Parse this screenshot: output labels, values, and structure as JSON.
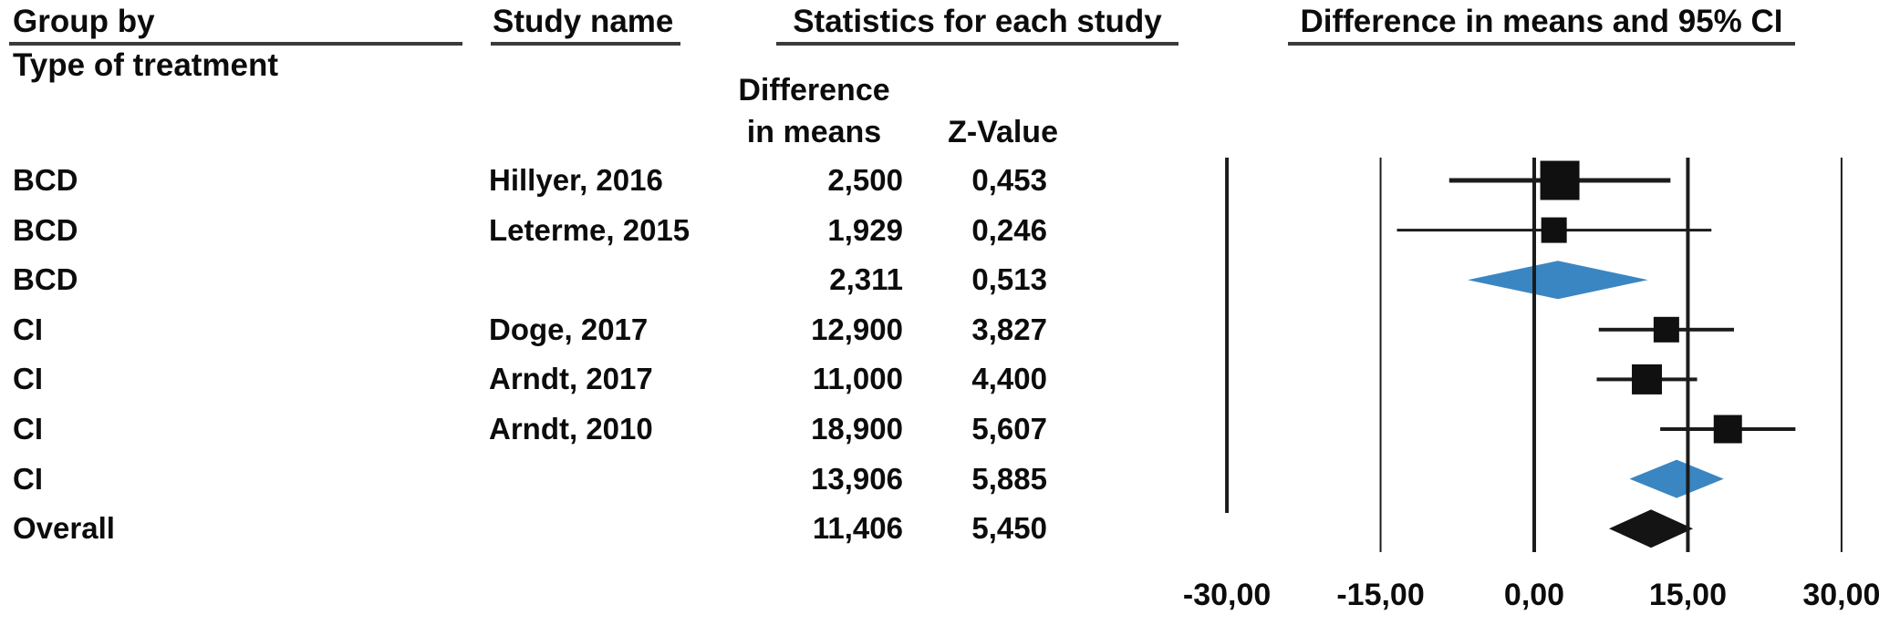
{
  "header": {
    "group_by_label": "Group by",
    "group_by_value": "Type of treatment",
    "study_col_label": "Study name",
    "stats_col_label": "Statistics for each study",
    "diff_subcol_line1": "Difference",
    "diff_subcol_line2": "in means",
    "z_subcol_label": "Z-Value",
    "plot_col_label": "Difference in means and 95% CI"
  },
  "axis": {
    "tick_labels": [
      "-30,00",
      "-15,00",
      "0,00",
      "15,00",
      "30,00"
    ],
    "tick_values": [
      -30,
      -15,
      0,
      15,
      30
    ]
  },
  "colors": {
    "subgroup_diamond": "#3a86c2",
    "overall_diamond": "#141414",
    "marker": "#101010",
    "line": "#1c1c1c"
  },
  "rows": [
    {
      "group": "BCD",
      "study": "Hillyer, 2016",
      "diff": "2,500",
      "z": "0,453",
      "marker": "square",
      "mean": 2.5,
      "ci_low": -8.3,
      "ci_high": 13.3,
      "size": 43,
      "lw": 5
    },
    {
      "group": "BCD",
      "study": "Leterme, 2015",
      "diff": "1,929",
      "z": "0,246",
      "marker": "square",
      "mean": 1.929,
      "ci_low": -13.4,
      "ci_high": 17.3,
      "size": 28,
      "lw": 3
    },
    {
      "group": "BCD",
      "study": "",
      "diff": "2,311",
      "z": "0,513",
      "marker": "diamond",
      "mean": 2.311,
      "ci_low": -6.5,
      "ci_high": 11.1,
      "color": "#3a86c2"
    },
    {
      "group": "CI",
      "study": "Doge, 2017",
      "diff": "12,900",
      "z": "3,827",
      "marker": "square",
      "mean": 12.9,
      "ci_low": 6.3,
      "ci_high": 19.5,
      "size": 28,
      "lw": 4
    },
    {
      "group": "CI",
      "study": "Arndt, 2017",
      "diff": "11,000",
      "z": "4,400",
      "marker": "square",
      "mean": 11.0,
      "ci_low": 6.1,
      "ci_high": 15.9,
      "size": 33,
      "lw": 4
    },
    {
      "group": "CI",
      "study": "Arndt, 2010",
      "diff": "18,900",
      "z": "5,607",
      "marker": "square",
      "mean": 18.9,
      "ci_low": 12.3,
      "ci_high": 25.5,
      "size": 31,
      "lw": 4
    },
    {
      "group": "CI",
      "study": "",
      "diff": "13,906",
      "z": "5,885",
      "marker": "diamond",
      "mean": 13.906,
      "ci_low": 9.3,
      "ci_high": 18.5,
      "color": "#3a86c2"
    },
    {
      "group": "Overall",
      "study": "",
      "diff": "11,406",
      "z": "5,450",
      "marker": "diamond",
      "mean": 11.406,
      "ci_low": 7.3,
      "ci_high": 15.5,
      "color": "#141414"
    }
  ],
  "chart_data": {
    "type": "scatter",
    "subtype": "forest-plot",
    "title": "Difference in means and 95% CI",
    "grouping_label": "Group by Type of treatment",
    "x_axis": {
      "min": -30,
      "max": 30,
      "tick_values": [
        -30,
        -15,
        0,
        15,
        30
      ],
      "tick_labels": [
        "-30,00",
        "-15,00",
        "0,00",
        "15,00",
        "30,00"
      ]
    },
    "reference_lines": [
      -30,
      -15,
      0,
      15,
      30
    ],
    "legend_position": "none",
    "grid": false,
    "points": [
      {
        "group": "BCD",
        "study": "Hillyer, 2016",
        "difference_in_means": 2.5,
        "z_value": 0.453,
        "ci95": [
          -8.3,
          13.3
        ],
        "marker": "square",
        "summary": false
      },
      {
        "group": "BCD",
        "study": "Leterme, 2015",
        "difference_in_means": 1.929,
        "z_value": 0.246,
        "ci95": [
          -13.4,
          17.3
        ],
        "marker": "square",
        "summary": false
      },
      {
        "group": "BCD",
        "study": null,
        "difference_in_means": 2.311,
        "z_value": 0.513,
        "ci95": [
          -6.5,
          11.1
        ],
        "marker": "diamond",
        "summary": true
      },
      {
        "group": "CI",
        "study": "Doge, 2017",
        "difference_in_means": 12.9,
        "z_value": 3.827,
        "ci95": [
          6.3,
          19.5
        ],
        "marker": "square",
        "summary": false
      },
      {
        "group": "CI",
        "study": "Arndt, 2017",
        "difference_in_means": 11.0,
        "z_value": 4.4,
        "ci95": [
          6.1,
          15.9
        ],
        "marker": "square",
        "summary": false
      },
      {
        "group": "CI",
        "study": "Arndt, 2010",
        "difference_in_means": 18.9,
        "z_value": 5.607,
        "ci95": [
          12.3,
          25.5
        ],
        "marker": "square",
        "summary": false
      },
      {
        "group": "CI",
        "study": null,
        "difference_in_means": 13.906,
        "z_value": 5.885,
        "ci95": [
          9.3,
          18.5
        ],
        "marker": "diamond",
        "summary": true
      },
      {
        "group": "Overall",
        "study": null,
        "difference_in_means": 11.406,
        "z_value": 5.45,
        "ci95": [
          7.3,
          15.5
        ],
        "marker": "diamond",
        "summary": true
      }
    ]
  }
}
